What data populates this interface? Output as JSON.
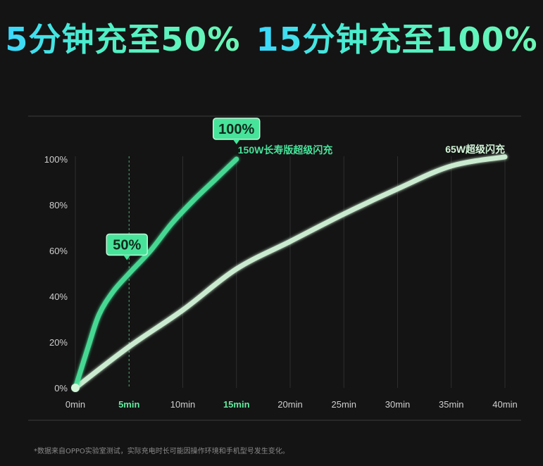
{
  "headline": {
    "part1": "5分钟充至50%",
    "part2": "15分钟充至100%"
  },
  "footnote": "*数据来自OPPO实验室测试，实际充电时长可能因操作环境和手机型号发生变化。",
  "colors": {
    "series_150w": "#48e39a",
    "series_65w": "#d4f7da",
    "callout_fill": "#48e39a",
    "callout_text": "#0e2a1c",
    "highlight_tick": "#62ea9f",
    "tick": "#cfcfcf",
    "grid": "#2e2e2e",
    "axis": "#3c3c3c"
  },
  "chart_data": {
    "type": "line",
    "x_unit": "min",
    "xlim": [
      0,
      40
    ],
    "ylim": [
      0,
      100
    ],
    "x_ticks": [
      {
        "value": 0,
        "label": "0min",
        "highlight": false
      },
      {
        "value": 5,
        "label": "5min",
        "highlight": true
      },
      {
        "value": 10,
        "label": "10min",
        "highlight": false
      },
      {
        "value": 15,
        "label": "15min",
        "highlight": true
      },
      {
        "value": 20,
        "label": "20min",
        "highlight": false
      },
      {
        "value": 25,
        "label": "25min",
        "highlight": false
      },
      {
        "value": 30,
        "label": "30min",
        "highlight": false
      },
      {
        "value": 35,
        "label": "35min",
        "highlight": false
      },
      {
        "value": 40,
        "label": "40min",
        "highlight": false
      }
    ],
    "y_ticks": [
      {
        "value": 0,
        "label": "0%"
      },
      {
        "value": 20,
        "label": "20%"
      },
      {
        "value": 40,
        "label": "40%"
      },
      {
        "value": 60,
        "label": "60%"
      },
      {
        "value": 80,
        "label": "80%"
      },
      {
        "value": 100,
        "label": "100%"
      }
    ],
    "series": [
      {
        "name": "150W长寿版超级闪充",
        "color_key": "series_150w",
        "points": [
          [
            0,
            0
          ],
          [
            1.2,
            18
          ],
          [
            2.2,
            32
          ],
          [
            3.5,
            42
          ],
          [
            5,
            50
          ],
          [
            7,
            60
          ],
          [
            9,
            72
          ],
          [
            11,
            82
          ],
          [
            13,
            91
          ],
          [
            15,
            100
          ]
        ]
      },
      {
        "name": "65W超级闪充",
        "color_key": "series_65w",
        "points": [
          [
            0,
            0
          ],
          [
            5,
            18
          ],
          [
            10,
            34
          ],
          [
            15,
            52
          ],
          [
            20,
            64
          ],
          [
            25,
            76
          ],
          [
            30,
            87
          ],
          [
            35,
            97
          ],
          [
            40,
            101
          ]
        ]
      }
    ],
    "callouts": [
      {
        "label": "50%",
        "x": 5,
        "y": 50
      },
      {
        "label": "100%",
        "x": 15,
        "y": 100
      }
    ],
    "guide_x": 5,
    "grid": true,
    "legend": "inline-labels"
  }
}
